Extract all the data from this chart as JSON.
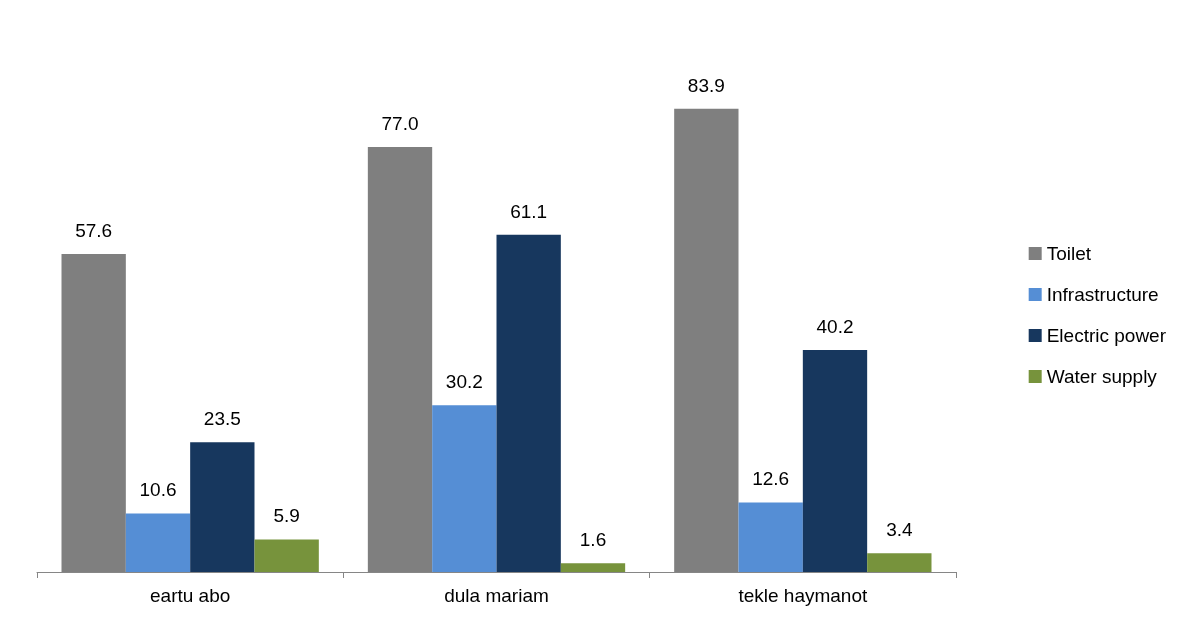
{
  "chart_data": {
    "type": "bar",
    "categories": [
      "eartu abo",
      "dula mariam",
      "tekle haymanot"
    ],
    "series": [
      {
        "name": "Toilet",
        "color": "#7f7f7f",
        "values": [
          57.6,
          77,
          83.9
        ],
        "value_labels": [
          "57.6",
          "77.0",
          "83.9"
        ]
      },
      {
        "name": "Infrastructure",
        "color": "#558ed5",
        "values": [
          10.6,
          30.2,
          12.6
        ],
        "value_labels": [
          "10.6",
          "30.2",
          "12.6"
        ]
      },
      {
        "name": "Electric power",
        "color": "#17375e",
        "values": [
          23.5,
          61.1,
          40.2
        ],
        "value_labels": [
          "23.5",
          "61.1",
          "40.2"
        ]
      },
      {
        "name": "Water supply",
        "color": "#77933c",
        "values": [
          5.9,
          1.6,
          3.4
        ],
        "value_labels": [
          "5.9",
          "1.6",
          "3.4"
        ]
      }
    ],
    "legend": "right"
  }
}
